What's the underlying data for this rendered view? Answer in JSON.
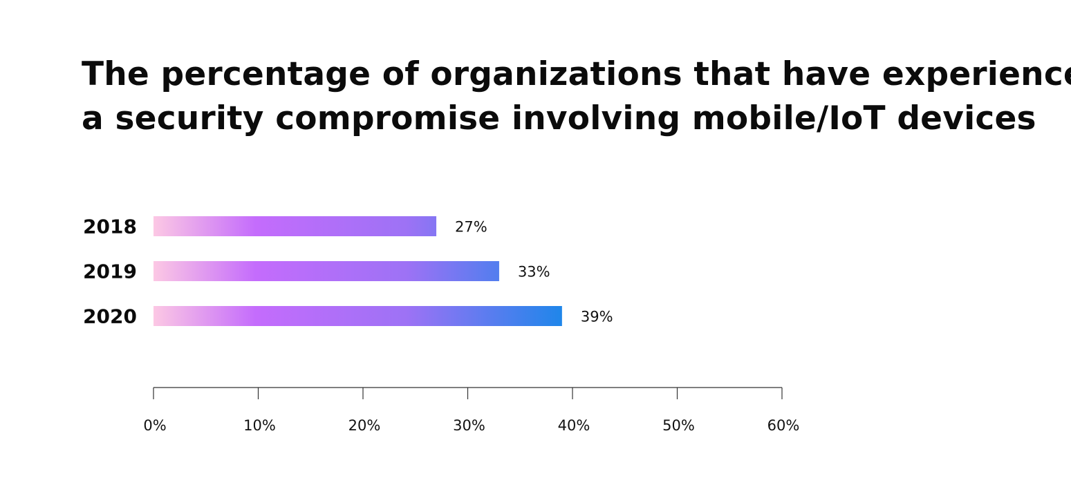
{
  "title_lines": [
    "The percentage of organizations that have experienced",
    "a security compromise involving mobile/IoT devices"
  ],
  "chart_data": {
    "type": "bar",
    "orientation": "horizontal",
    "title": "The percentage of organizations that have experienced a security compromise involving mobile/IoT devices",
    "categories": [
      "2018",
      "2019",
      "2020"
    ],
    "values": [
      27,
      33,
      39
    ],
    "value_labels": [
      "27%",
      "33%",
      "39%"
    ],
    "xlabel": "",
    "ylabel": "",
    "xlim": [
      0,
      60
    ],
    "x_ticks": [
      0,
      10,
      20,
      30,
      40,
      50,
      60
    ],
    "x_tick_labels": [
      "0%",
      "10%",
      "20%",
      "30%",
      "40%",
      "50%",
      "60%"
    ],
    "grid": false,
    "legend": "none",
    "bar_gradient": [
      "#fcc8e4",
      "#c46cfc",
      "#9d72f5",
      "#1f86ea"
    ]
  }
}
